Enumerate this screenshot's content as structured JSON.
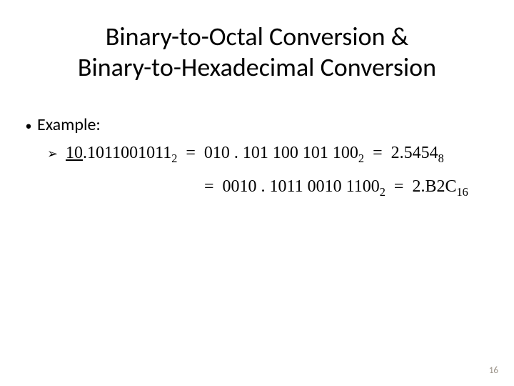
{
  "title_line1": "Binary-to-Octal Conversion &",
  "title_line2": "Binary-to-Hexadecimal Conversion",
  "bullet_label": "Example:",
  "line1": {
    "lhs_int": "10",
    "lhs_frac": "1011001011",
    "lhs_sub": "2",
    "mid_int": "010",
    "mid_frac": "101 100 101 100",
    "mid_sub": "2",
    "rhs_val": "2.5454",
    "rhs_sub": "8"
  },
  "line2": {
    "mid_int": "0010",
    "mid_frac": "1011 0010 1100",
    "mid_sub": "2",
    "rhs_val": "2.B2C",
    "rhs_sub": "16"
  },
  "page_number": "16",
  "colors": {
    "text": "#000000",
    "background": "#ffffff",
    "page_num": "#9a9288"
  }
}
